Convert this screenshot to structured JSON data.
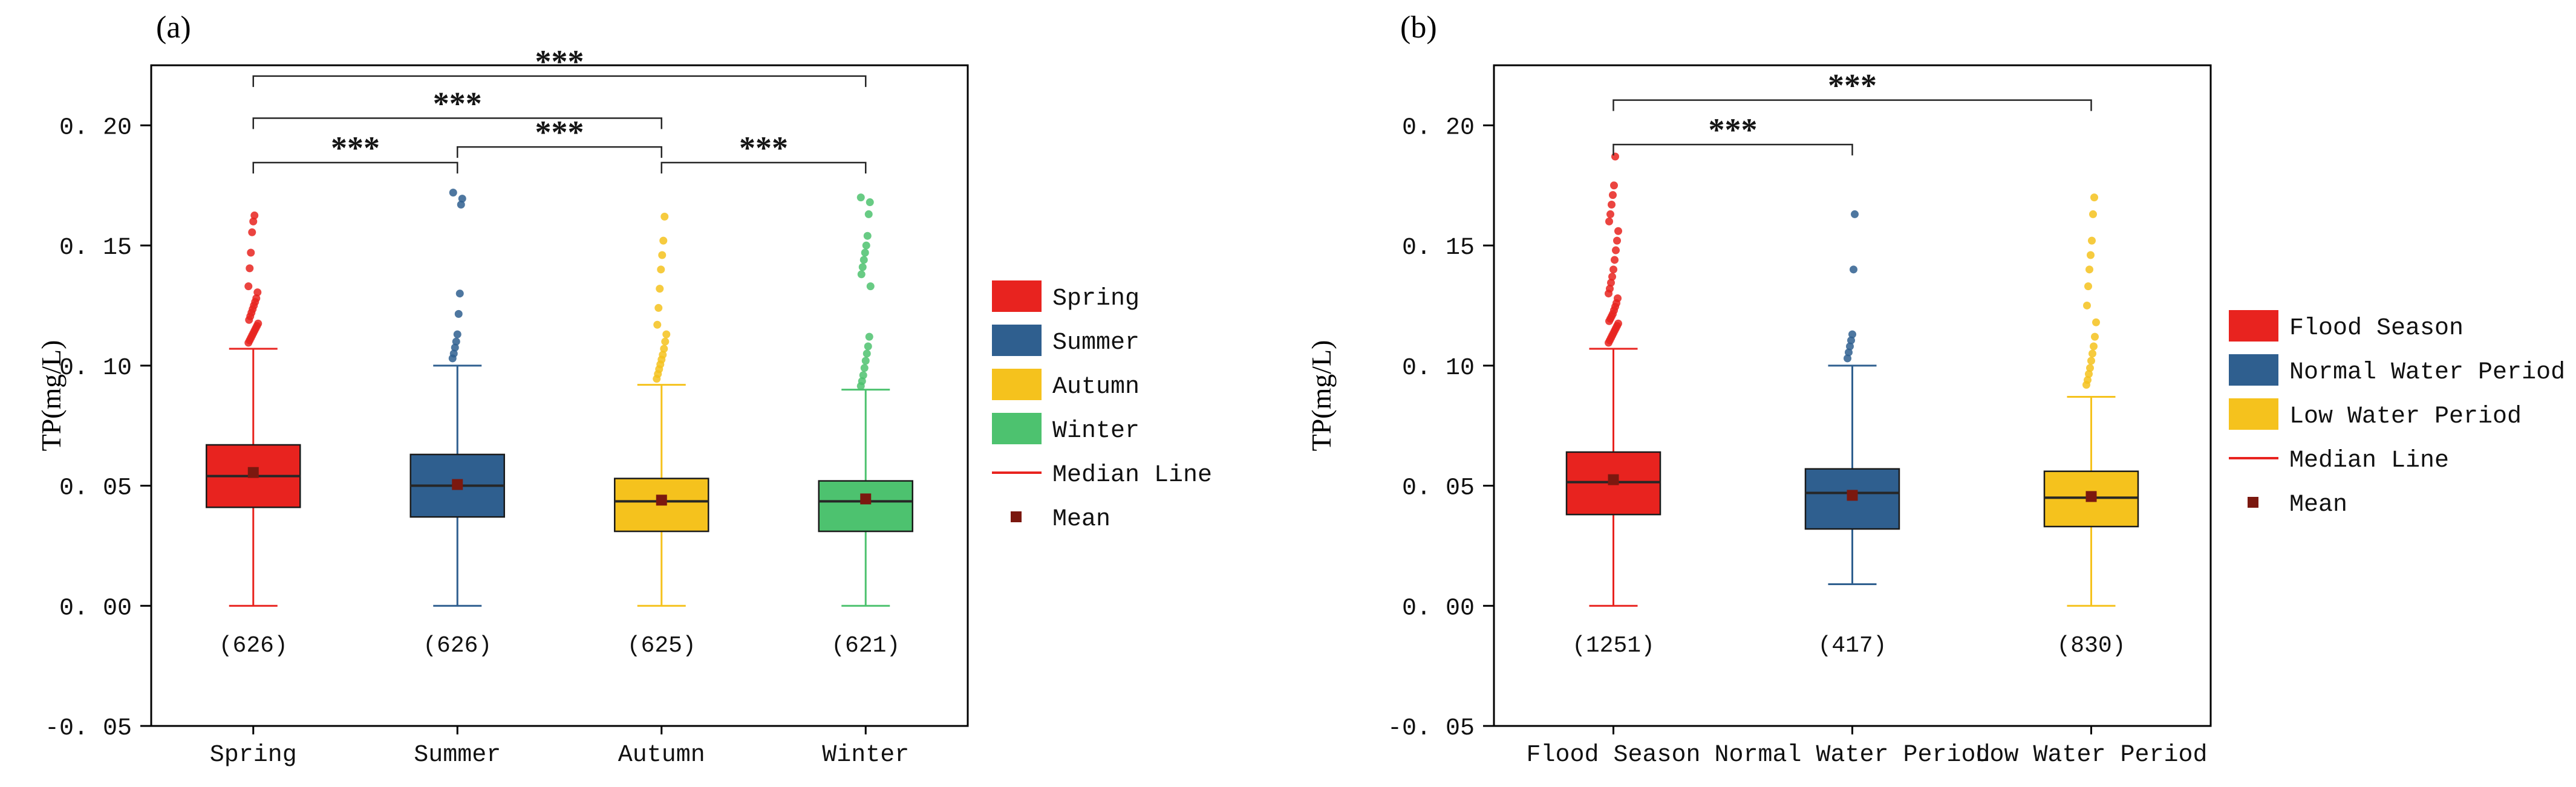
{
  "style": {
    "axis": "#000000",
    "box_edge": "#1a1a1a",
    "median": "#262626",
    "mean": "#7b180f",
    "background": "#ffffff"
  },
  "chart_data": [
    {
      "type": "box",
      "panel_label": "(a)",
      "title": "",
      "xlabel": "",
      "ylabel": "TP(mg/L)",
      "ylim": [
        -0.05,
        0.225
      ],
      "legend_position": "right",
      "grid": false,
      "yticks": [
        {
          "value": 0.2,
          "label": "0. 20"
        },
        {
          "value": 0.15,
          "label": "0. 15"
        },
        {
          "value": 0.1,
          "label": "0. 10"
        },
        {
          "value": 0.05,
          "label": "0. 05"
        },
        {
          "value": 0.0,
          "label": "0. 00"
        },
        {
          "value": -0.05,
          "label": "-0. 05"
        }
      ],
      "categories": [
        "Spring",
        "Summer",
        "Autumn",
        "Winter"
      ],
      "series": [
        {
          "name": "Spring",
          "color": "#e8231f",
          "count_label": "(626)",
          "stats": {
            "whisker_low": 0.0,
            "q1": 0.041,
            "median": 0.054,
            "q3": 0.067,
            "whisker_high": 0.107,
            "mean": 0.0555
          },
          "outliers": [
            0.1095,
            0.1105,
            0.1115,
            0.1125,
            0.1135,
            0.1145,
            0.1155,
            0.1165,
            0.1175,
            0.119,
            0.1205,
            0.122,
            0.1235,
            0.125,
            0.1265,
            0.128,
            0.1305,
            0.133,
            0.1405,
            0.147,
            0.1555,
            0.16,
            0.1625
          ]
        },
        {
          "name": "Summer",
          "color": "#2f5f8f",
          "count_label": "(626)",
          "stats": {
            "whisker_low": 0.0,
            "q1": 0.037,
            "median": 0.05,
            "q3": 0.063,
            "whisker_high": 0.1,
            "mean": 0.0505
          },
          "outliers": [
            0.103,
            0.105,
            0.1075,
            0.11,
            0.113,
            0.1215,
            0.13,
            0.167,
            0.1695,
            0.172
          ]
        },
        {
          "name": "Autumn",
          "color": "#f5c21d",
          "count_label": "(625)",
          "stats": {
            "whisker_low": 0.0,
            "q1": 0.031,
            "median": 0.0435,
            "q3": 0.053,
            "whisker_high": 0.092,
            "mean": 0.044
          },
          "outliers": [
            0.0945,
            0.0965,
            0.0985,
            0.1005,
            0.1025,
            0.1045,
            0.107,
            0.11,
            0.113,
            0.117,
            0.124,
            0.132,
            0.14,
            0.146,
            0.152,
            0.162
          ]
        },
        {
          "name": "Winter",
          "color": "#4dc26f",
          "count_label": "(621)",
          "stats": {
            "whisker_low": 0.0,
            "q1": 0.031,
            "median": 0.0435,
            "q3": 0.052,
            "whisker_high": 0.09,
            "mean": 0.0445
          },
          "outliers": [
            0.0915,
            0.0935,
            0.096,
            0.099,
            0.102,
            0.105,
            0.108,
            0.112,
            0.133,
            0.138,
            0.141,
            0.144,
            0.147,
            0.15,
            0.154,
            0.163,
            0.168,
            0.17
          ]
        }
      ],
      "brackets": [
        {
          "from": 0,
          "to": 1,
          "y": 0.1845,
          "label": "***"
        },
        {
          "from": 1,
          "to": 2,
          "y": 0.191,
          "label": "***"
        },
        {
          "from": 2,
          "to": 3,
          "y": 0.1845,
          "label": "***"
        },
        {
          "from": 0,
          "to": 2,
          "y": 0.203,
          "label": "***"
        },
        {
          "from": 0,
          "to": 3,
          "y": 0.2205,
          "label": "***"
        }
      ],
      "legend": [
        {
          "type": "swatch",
          "color": "#e8231f",
          "label": "Spring"
        },
        {
          "type": "swatch",
          "color": "#2f5f8f",
          "label": "Summer"
        },
        {
          "type": "swatch",
          "color": "#f5c21d",
          "label": "Autumn"
        },
        {
          "type": "swatch",
          "color": "#4dc26f",
          "label": "Winter"
        },
        {
          "type": "line",
          "color": "#e8231f",
          "label": "Median Line"
        },
        {
          "type": "square",
          "color": "#7b180f",
          "label": "Mean"
        }
      ]
    },
    {
      "type": "box",
      "panel_label": "(b)",
      "title": "",
      "xlabel": "",
      "ylabel": "TP(mg/L)",
      "ylim": [
        -0.05,
        0.225
      ],
      "legend_position": "right",
      "grid": false,
      "yticks": [
        {
          "value": 0.2,
          "label": "0. 20"
        },
        {
          "value": 0.15,
          "label": "0. 15"
        },
        {
          "value": 0.1,
          "label": "0. 10"
        },
        {
          "value": 0.05,
          "label": "0. 05"
        },
        {
          "value": 0.0,
          "label": "0. 00"
        },
        {
          "value": -0.05,
          "label": "-0. 05"
        }
      ],
      "categories": [
        "Flood Season",
        "Normal Water Period",
        "Low Water Period"
      ],
      "series": [
        {
          "name": "Flood Season",
          "color": "#e8231f",
          "count_label": "(1251)",
          "stats": {
            "whisker_low": 0.0,
            "q1": 0.038,
            "median": 0.0515,
            "q3": 0.064,
            "whisker_high": 0.107,
            "mean": 0.0525
          },
          "outliers": [
            0.1095,
            0.1105,
            0.1115,
            0.1125,
            0.1135,
            0.1145,
            0.1155,
            0.1165,
            0.1175,
            0.1185,
            0.1195,
            0.1205,
            0.1215,
            0.123,
            0.1245,
            0.126,
            0.128,
            0.13,
            0.132,
            0.1345,
            0.137,
            0.14,
            0.144,
            0.148,
            0.152,
            0.156,
            0.16,
            0.163,
            0.167,
            0.171,
            0.175,
            0.187
          ]
        },
        {
          "name": "Normal Water Period",
          "color": "#2f5f8f",
          "count_label": "(417)",
          "stats": {
            "whisker_low": 0.009,
            "q1": 0.032,
            "median": 0.047,
            "q3": 0.057,
            "whisker_high": 0.1,
            "mean": 0.046
          },
          "outliers": [
            0.103,
            0.1055,
            0.108,
            0.1105,
            0.113,
            0.14,
            0.163
          ]
        },
        {
          "name": "Low Water Period",
          "color": "#f5c21d",
          "count_label": "(830)",
          "stats": {
            "whisker_low": 0.0,
            "q1": 0.033,
            "median": 0.045,
            "q3": 0.056,
            "whisker_high": 0.087,
            "mean": 0.0455
          },
          "outliers": [
            0.092,
            0.094,
            0.0965,
            0.099,
            0.102,
            0.105,
            0.108,
            0.112,
            0.118,
            0.125,
            0.133,
            0.14,
            0.146,
            0.152,
            0.163,
            0.17
          ]
        }
      ],
      "brackets": [
        {
          "from": 0,
          "to": 1,
          "y": 0.192,
          "label": "***"
        },
        {
          "from": 0,
          "to": 2,
          "y": 0.2105,
          "label": "***"
        }
      ],
      "legend": [
        {
          "type": "swatch",
          "color": "#e8231f",
          "label": "Flood Season"
        },
        {
          "type": "swatch",
          "color": "#2f5f8f",
          "label": "Normal Water Period"
        },
        {
          "type": "swatch",
          "color": "#f5c21d",
          "label": "Low Water Period"
        },
        {
          "type": "line",
          "color": "#e8231f",
          "label": "Median Line"
        },
        {
          "type": "square",
          "color": "#7b180f",
          "label": "Mean"
        }
      ]
    }
  ]
}
